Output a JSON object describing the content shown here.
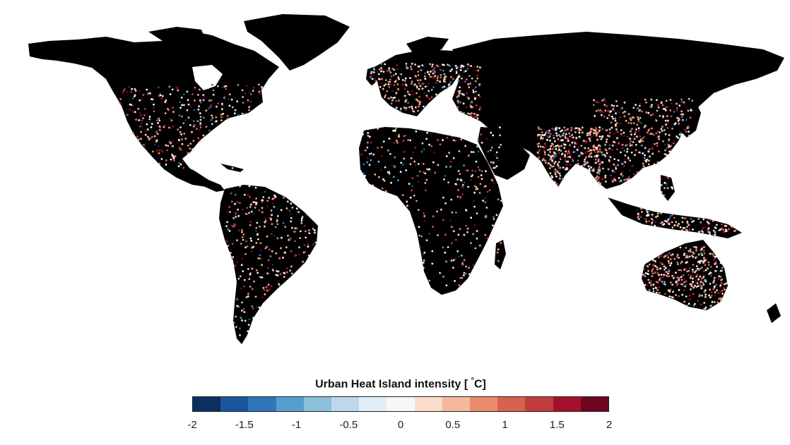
{
  "legend": {
    "title_prefix": "Urban Heat Island intensity [ ",
    "title_degree": "°",
    "title_unit": "C]",
    "min": -2,
    "max": 2,
    "ticks": [
      "-2",
      "-1.5",
      "-1",
      "-0.5",
      "0",
      "0.5",
      "1",
      "1.5",
      "2"
    ],
    "tick_values": [
      -2,
      -1.5,
      -1,
      -0.5,
      0,
      0.5,
      1,
      1.5,
      2
    ],
    "colors": [
      "#0b2f5e",
      "#1a56a0",
      "#2f76bb",
      "#559fcc",
      "#8bbfdb",
      "#bcd8ea",
      "#e2eef6",
      "#f7f7f7",
      "#fbdccc",
      "#f6b89a",
      "#ea8c6c",
      "#d76150",
      "#c23b3b",
      "#a5112c",
      "#6d0620"
    ]
  },
  "map": {
    "land_color": "#000000",
    "ocean_color": "#ffffff"
  }
}
